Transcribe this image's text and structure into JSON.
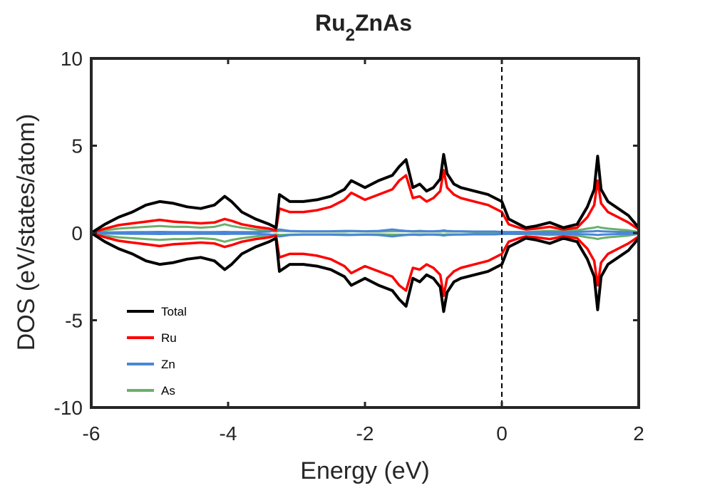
{
  "chart_data": {
    "type": "line",
    "title": {
      "main": "Ru",
      "subscript": "2",
      "rest": "ZnAs"
    },
    "xlabel": "Energy (eV)",
    "ylabel": "DOS (eV/states/atom)",
    "xlim": [
      -6,
      2
    ],
    "ylim": [
      -10,
      10
    ],
    "xticks": [
      -6,
      -4,
      -2,
      0,
      2
    ],
    "yticks": [
      -10,
      -5,
      0,
      5,
      10
    ],
    "xtick_labels": [
      "-6",
      "-4",
      "-2",
      "0",
      "2"
    ],
    "ytick_labels": [
      "-10",
      "-5",
      "0",
      "5",
      "10"
    ],
    "fermi_level": 0,
    "grid": false,
    "legend_position": "bottom-left",
    "mirrored_spin_down": true,
    "x": [
      -6.0,
      -5.8,
      -5.6,
      -5.4,
      -5.2,
      -5.0,
      -4.8,
      -4.6,
      -4.4,
      -4.2,
      -4.05,
      -3.95,
      -3.8,
      -3.6,
      -3.4,
      -3.3,
      -3.25,
      -3.1,
      -2.9,
      -2.7,
      -2.5,
      -2.3,
      -2.2,
      -2.0,
      -1.8,
      -1.6,
      -1.5,
      -1.4,
      -1.3,
      -1.2,
      -1.1,
      -1.0,
      -0.9,
      -0.85,
      -0.8,
      -0.7,
      -0.6,
      -0.4,
      -0.2,
      -0.1,
      0.0,
      0.1,
      0.25,
      0.35,
      0.5,
      0.7,
      0.9,
      1.1,
      1.25,
      1.35,
      1.4,
      1.45,
      1.55,
      1.7,
      1.85,
      2.0
    ],
    "series": [
      {
        "name": "Total",
        "color": "#000000",
        "values": [
          0.0,
          0.5,
          0.9,
          1.2,
          1.6,
          1.8,
          1.7,
          1.5,
          1.4,
          1.6,
          2.1,
          1.8,
          1.2,
          0.8,
          0.5,
          0.3,
          2.2,
          1.8,
          1.8,
          1.9,
          2.1,
          2.5,
          3.0,
          2.6,
          3.0,
          3.3,
          3.8,
          4.2,
          2.6,
          2.8,
          2.4,
          2.6,
          3.1,
          4.5,
          3.4,
          2.8,
          2.6,
          2.4,
          2.2,
          2.0,
          1.8,
          0.8,
          0.5,
          0.3,
          0.4,
          0.6,
          0.3,
          0.5,
          1.5,
          2.5,
          4.4,
          2.5,
          1.8,
          1.4,
          1.0,
          0.3
        ]
      },
      {
        "name": "Ru",
        "color": "#ff0000",
        "values": [
          0.0,
          0.25,
          0.45,
          0.55,
          0.65,
          0.75,
          0.65,
          0.6,
          0.55,
          0.6,
          0.8,
          0.7,
          0.5,
          0.35,
          0.25,
          0.15,
          1.4,
          1.2,
          1.2,
          1.3,
          1.5,
          1.9,
          2.3,
          1.9,
          2.2,
          2.5,
          3.0,
          3.3,
          2.0,
          2.1,
          1.8,
          2.0,
          2.4,
          3.6,
          2.6,
          2.2,
          2.0,
          1.8,
          1.6,
          1.4,
          1.2,
          0.5,
          0.3,
          0.2,
          0.25,
          0.35,
          0.2,
          0.3,
          0.9,
          1.6,
          3.0,
          1.7,
          1.2,
          0.9,
          0.6,
          0.2
        ]
      },
      {
        "name": "Zn",
        "color": "#4a86d6",
        "values": [
          0.0,
          0.03,
          0.04,
          0.05,
          0.05,
          0.06,
          0.05,
          0.05,
          0.05,
          0.05,
          0.06,
          0.05,
          0.05,
          0.05,
          0.08,
          0.15,
          0.2,
          0.12,
          0.1,
          0.1,
          0.1,
          0.12,
          0.12,
          0.1,
          0.12,
          0.2,
          0.15,
          0.12,
          0.1,
          0.12,
          0.1,
          0.1,
          0.12,
          0.15,
          0.12,
          0.1,
          0.1,
          0.08,
          0.08,
          0.08,
          0.06,
          0.05,
          0.05,
          0.04,
          0.05,
          0.05,
          0.05,
          0.06,
          0.08,
          0.1,
          0.12,
          0.1,
          0.08,
          0.06,
          0.05,
          0.03
        ]
      },
      {
        "name": "As",
        "color": "#6ab06a",
        "values": [
          0.0,
          0.15,
          0.25,
          0.3,
          0.35,
          0.4,
          0.35,
          0.35,
          0.3,
          0.35,
          0.5,
          0.4,
          0.3,
          0.2,
          0.12,
          0.08,
          0.12,
          0.1,
          0.08,
          0.08,
          0.08,
          0.08,
          0.1,
          0.08,
          0.08,
          0.1,
          0.1,
          0.1,
          0.08,
          0.08,
          0.08,
          0.08,
          0.08,
          0.1,
          0.08,
          0.08,
          0.08,
          0.06,
          0.06,
          0.06,
          0.05,
          0.05,
          0.06,
          0.05,
          0.08,
          0.12,
          0.1,
          0.15,
          0.25,
          0.3,
          0.35,
          0.3,
          0.25,
          0.2,
          0.15,
          0.05
        ]
      }
    ]
  }
}
